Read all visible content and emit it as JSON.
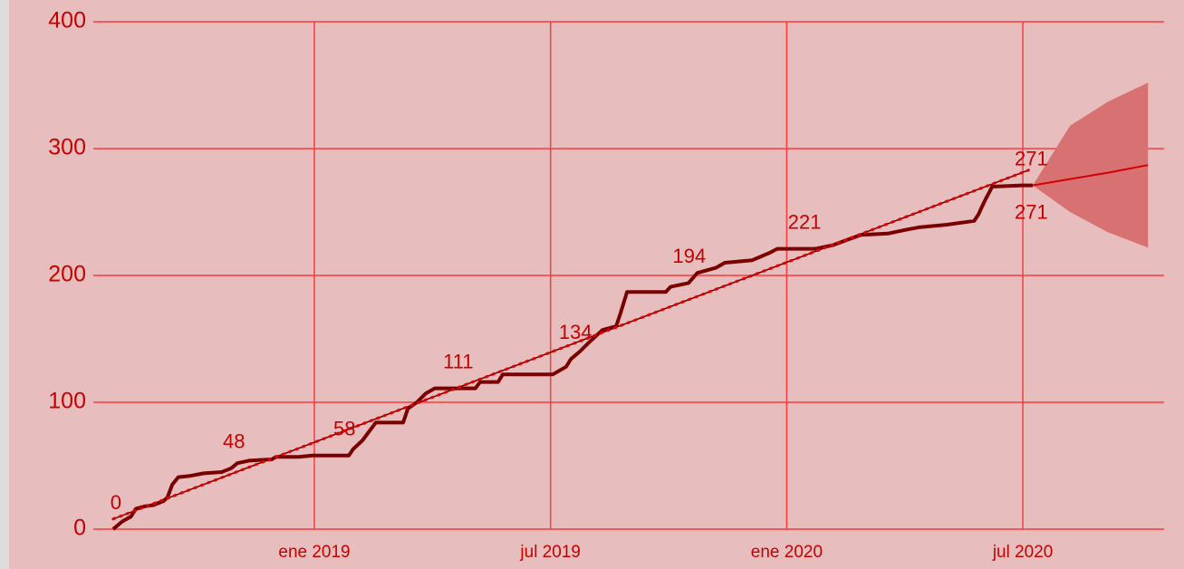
{
  "chart_data": {
    "type": "line",
    "x": [
      2018.574,
      2018.593,
      2018.612,
      2018.622,
      2018.641,
      2018.66,
      2018.68,
      2018.689,
      2018.699,
      2018.712,
      2018.737,
      2018.766,
      2018.804,
      2018.824,
      2018.837,
      2018.862,
      2018.91,
      2018.919,
      2018.967,
      2018.996,
      2019.073,
      2019.082,
      2019.102,
      2019.13,
      2019.188,
      2019.198,
      2019.217,
      2019.236,
      2019.255,
      2019.341,
      2019.351,
      2019.389,
      2019.399,
      2019.505,
      2019.533,
      2019.543,
      2019.562,
      2019.581,
      2019.61,
      2019.639,
      2019.648,
      2019.662,
      2019.744,
      2019.754,
      2019.792,
      2019.811,
      2019.85,
      2019.869,
      2019.898,
      2019.927,
      2019.946,
      2019.965,
      2019.98,
      2020.061,
      2020.099,
      2020.128,
      2020.157,
      2020.214,
      2020.253,
      2020.281,
      2020.339,
      2020.397,
      2020.406,
      2020.412,
      2020.421,
      2020.431,
      2020.435,
      2020.498,
      2020.521
    ],
    "values": [
      0,
      6,
      10,
      16,
      18,
      19,
      22,
      25,
      35,
      41,
      42,
      44,
      45,
      48,
      52,
      54,
      55,
      57,
      57,
      58,
      58,
      63,
      70,
      84,
      84,
      95,
      100,
      107,
      111,
      111,
      116,
      116,
      122,
      122,
      128,
      134,
      140,
      147,
      157,
      160,
      170,
      187,
      187,
      191,
      194,
      202,
      206,
      210,
      211,
      212,
      215,
      218,
      221,
      221,
      224,
      228,
      232,
      233,
      236,
      238,
      240,
      243,
      248,
      253,
      260,
      267,
      270,
      271,
      271
    ],
    "color": "#7a0000",
    "trend": {
      "x": [
        2018.574,
        2020.512
      ],
      "values": [
        8,
        283
      ],
      "color": "#5a0000",
      "dot_color": "#e00000"
    },
    "forecast": {
      "x": [
        2020.521,
        2020.6,
        2020.68,
        2020.765
      ],
      "values": [
        271,
        276,
        281,
        287
      ],
      "upper": [
        271,
        318,
        337,
        352
      ],
      "lower": [
        271,
        250,
        234,
        222
      ],
      "color": "#d40000",
      "band_color": "#d87272"
    },
    "annotations": [
      {
        "x": 2018.574,
        "value": 0,
        "side": "above"
      },
      {
        "x": 2018.824,
        "value": 48,
        "side": "above"
      },
      {
        "x": 2019.058,
        "value": 58,
        "side": "above"
      },
      {
        "x": 2019.299,
        "value": 111,
        "side": "above"
      },
      {
        "x": 2019.547,
        "value": 134,
        "side": "above"
      },
      {
        "x": 2019.788,
        "value": 194,
        "side": "above"
      },
      {
        "x": 2020.032,
        "value": 221,
        "side": "above"
      },
      {
        "x": 2020.512,
        "value": 271,
        "side": "above"
      },
      {
        "x": 2020.512,
        "value": 271,
        "side": "below"
      }
    ],
    "xlim": [
      2018.532,
      2020.799
    ],
    "xticks": [
      {
        "value": 2019,
        "label": "ene 2019"
      },
      {
        "value": 2019.5,
        "label": "jul 2019"
      },
      {
        "value": 2020,
        "label": "ene 2020"
      },
      {
        "value": 2020.5,
        "label": "jul 2020"
      }
    ],
    "ylim": [
      0,
      400
    ],
    "yticks": [
      0,
      100,
      200,
      300,
      400
    ],
    "grid": true,
    "grid_color": "#ff3b3b",
    "background": "#e7bdbd"
  }
}
